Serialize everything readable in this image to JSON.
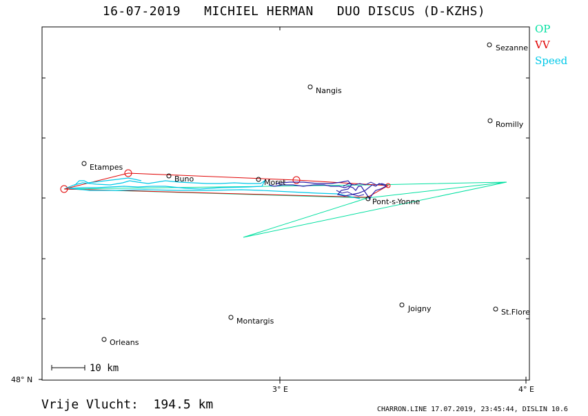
{
  "header": {
    "title": "16-07-2019   MICHIEL HERMAN   DUO DISCUS (D-KZHS)"
  },
  "legend": [
    {
      "label": "OP",
      "color": "#00e0a0"
    },
    {
      "label": "VV",
      "color": "#e00000"
    },
    {
      "label": "Speed",
      "color": "#00c8e8"
    }
  ],
  "axes": {
    "y_label": "48° N",
    "x_labels": [
      "3° E",
      "4° E"
    ]
  },
  "scale_bar": {
    "label": "10 km"
  },
  "towns": [
    {
      "name": "Sezanne"
    },
    {
      "name": "Nangis"
    },
    {
      "name": "Romilly"
    },
    {
      "name": "Etampes"
    },
    {
      "name": "Buno"
    },
    {
      "name": "Moret"
    },
    {
      "name": "Pont-s-Yonne"
    },
    {
      "name": "Joigny"
    },
    {
      "name": "St.Flore"
    },
    {
      "name": "Montargis"
    },
    {
      "name": "Orleans"
    }
  ],
  "footer": {
    "distance": "Vrije Vlucht:  194.5 km",
    "info": "CHARRON.LINE 17.07.2019, 23:45:44, DISLIN 10.6"
  }
}
